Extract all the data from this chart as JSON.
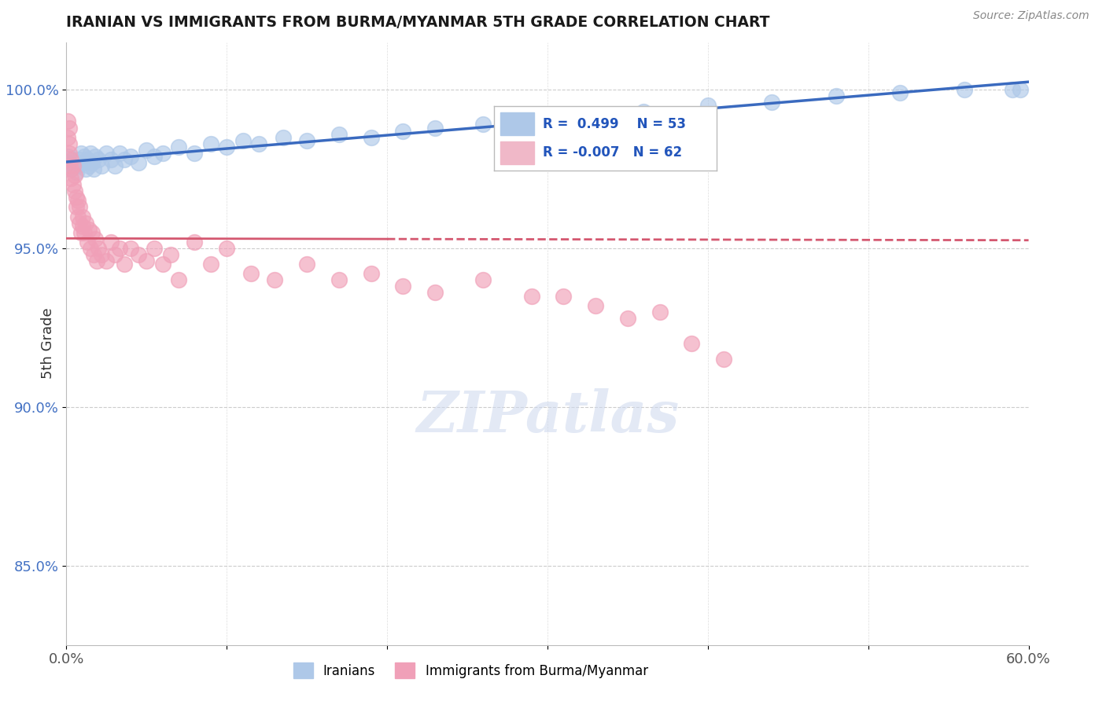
{
  "title": "IRANIAN VS IMMIGRANTS FROM BURMA/MYANMAR 5TH GRADE CORRELATION CHART",
  "source": "Source: ZipAtlas.com",
  "ylabel": "5th Grade",
  "xlim": [
    0.0,
    0.6
  ],
  "ylim": [
    0.825,
    1.015
  ],
  "yticks": [
    0.85,
    0.9,
    0.95,
    1.0
  ],
  "yticklabels": [
    "85.0%",
    "90.0%",
    "95.0%",
    "100.0%"
  ],
  "legend_labels": [
    "Iranians",
    "Immigrants from Burma/Myanmar"
  ],
  "blue_color": "#aec8e8",
  "pink_color": "#f0a0b8",
  "blue_line_color": "#3a6abf",
  "pink_line_color": "#d45870",
  "legend_box_blue": "#aec8e8",
  "legend_box_pink": "#f0b8c8",
  "R_blue": 0.499,
  "N_blue": 53,
  "R_pink": -0.007,
  "N_pink": 62,
  "blue_x": [
    0.001,
    0.002,
    0.003,
    0.004,
    0.005,
    0.006,
    0.007,
    0.008,
    0.009,
    0.01,
    0.011,
    0.012,
    0.013,
    0.014,
    0.015,
    0.016,
    0.017,
    0.018,
    0.02,
    0.022,
    0.025,
    0.028,
    0.03,
    0.033,
    0.036,
    0.04,
    0.045,
    0.05,
    0.055,
    0.06,
    0.07,
    0.08,
    0.09,
    0.1,
    0.11,
    0.12,
    0.135,
    0.15,
    0.17,
    0.19,
    0.21,
    0.23,
    0.26,
    0.29,
    0.32,
    0.36,
    0.4,
    0.44,
    0.48,
    0.52,
    0.56,
    0.59,
    0.595
  ],
  "blue_y": [
    0.979,
    0.977,
    0.975,
    0.978,
    0.976,
    0.974,
    0.976,
    0.978,
    0.98,
    0.977,
    0.979,
    0.975,
    0.978,
    0.976,
    0.98,
    0.977,
    0.975,
    0.979,
    0.978,
    0.976,
    0.98,
    0.978,
    0.976,
    0.98,
    0.978,
    0.979,
    0.977,
    0.981,
    0.979,
    0.98,
    0.982,
    0.98,
    0.983,
    0.982,
    0.984,
    0.983,
    0.985,
    0.984,
    0.986,
    0.985,
    0.987,
    0.988,
    0.989,
    0.99,
    0.991,
    0.993,
    0.995,
    0.996,
    0.998,
    0.999,
    1.0,
    1.0,
    1.0
  ],
  "pink_x": [
    0.001,
    0.001,
    0.002,
    0.002,
    0.002,
    0.003,
    0.003,
    0.003,
    0.004,
    0.004,
    0.005,
    0.005,
    0.006,
    0.006,
    0.007,
    0.007,
    0.008,
    0.008,
    0.009,
    0.01,
    0.01,
    0.011,
    0.012,
    0.013,
    0.014,
    0.015,
    0.016,
    0.017,
    0.018,
    0.019,
    0.02,
    0.022,
    0.025,
    0.028,
    0.03,
    0.033,
    0.036,
    0.04,
    0.045,
    0.05,
    0.055,
    0.06,
    0.065,
    0.07,
    0.08,
    0.09,
    0.1,
    0.115,
    0.13,
    0.15,
    0.17,
    0.19,
    0.21,
    0.23,
    0.26,
    0.29,
    0.31,
    0.33,
    0.35,
    0.37,
    0.39,
    0.41
  ],
  "pink_y": [
    0.99,
    0.985,
    0.988,
    0.983,
    0.98,
    0.978,
    0.975,
    0.972,
    0.976,
    0.97,
    0.973,
    0.968,
    0.966,
    0.963,
    0.965,
    0.96,
    0.958,
    0.963,
    0.955,
    0.96,
    0.957,
    0.955,
    0.958,
    0.952,
    0.956,
    0.95,
    0.955,
    0.948,
    0.953,
    0.946,
    0.95,
    0.948,
    0.946,
    0.952,
    0.948,
    0.95,
    0.945,
    0.95,
    0.948,
    0.946,
    0.95,
    0.945,
    0.948,
    0.94,
    0.952,
    0.945,
    0.95,
    0.942,
    0.94,
    0.945,
    0.94,
    0.942,
    0.938,
    0.936,
    0.94,
    0.935,
    0.935,
    0.932,
    0.928,
    0.93,
    0.92,
    0.915
  ]
}
